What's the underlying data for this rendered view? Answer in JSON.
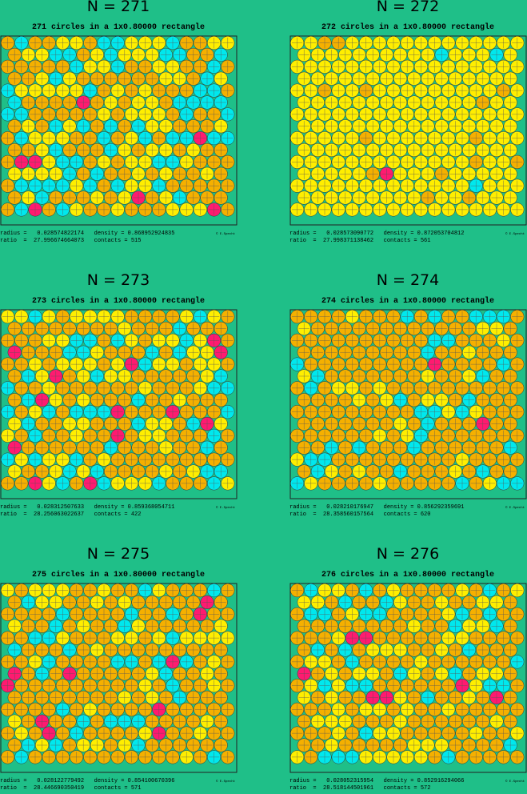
{
  "panels": [
    {
      "title": "N = 271",
      "subtitle": "271 circles in a 1x0.80000 rectangle",
      "line1": "radius =   0.028574822174   density = 0.868952924835",
      "line2": "ratio  =  27.996674664073   contacts = 515",
      "credit": "© E.Specht"
    },
    {
      "title": "N = 272",
      "subtitle": "272 circles in a 1x0.80000 rectangle",
      "line1": "radius =   0.028573090772   density = 0.872053704812",
      "line2": "ratio  =  27.998371138462   contacts = 561",
      "credit": "© E.Specht"
    },
    {
      "title": "N = 273",
      "subtitle": "273 circles in a 1x0.80000 rectangle",
      "line1": "radius =   0.028312507633   density = 0.859368054711",
      "line2": "ratio  =  28.256063022637   contacts = 422",
      "credit": "© E.Specht"
    },
    {
      "title": "N = 274",
      "subtitle": "274 circles in a 1x0.80000 rectangle",
      "line1": "radius =   0.028210176947   density = 0.856292359691",
      "line2": "ratio  =  28.358560157564   contacts = 620",
      "credit": "© E.Specht"
    },
    {
      "title": "N = 275",
      "subtitle": "275 circles in a 1x0.80000 rectangle",
      "line1": "radius =   0.028122779492   density = 0.854100670396",
      "line2": "ratio  =  28.446690350419   contacts = 571",
      "credit": "© E.Specht"
    },
    {
      "title": "N = 276",
      "subtitle": "276 circles in a 1x0.80000 rectangle",
      "line1": "radius =   0.028052315954   density = 0.852916294066",
      "line2": "ratio  =  28.518144501961   contacts = 572",
      "credit": "© E.Specht"
    }
  ]
}
